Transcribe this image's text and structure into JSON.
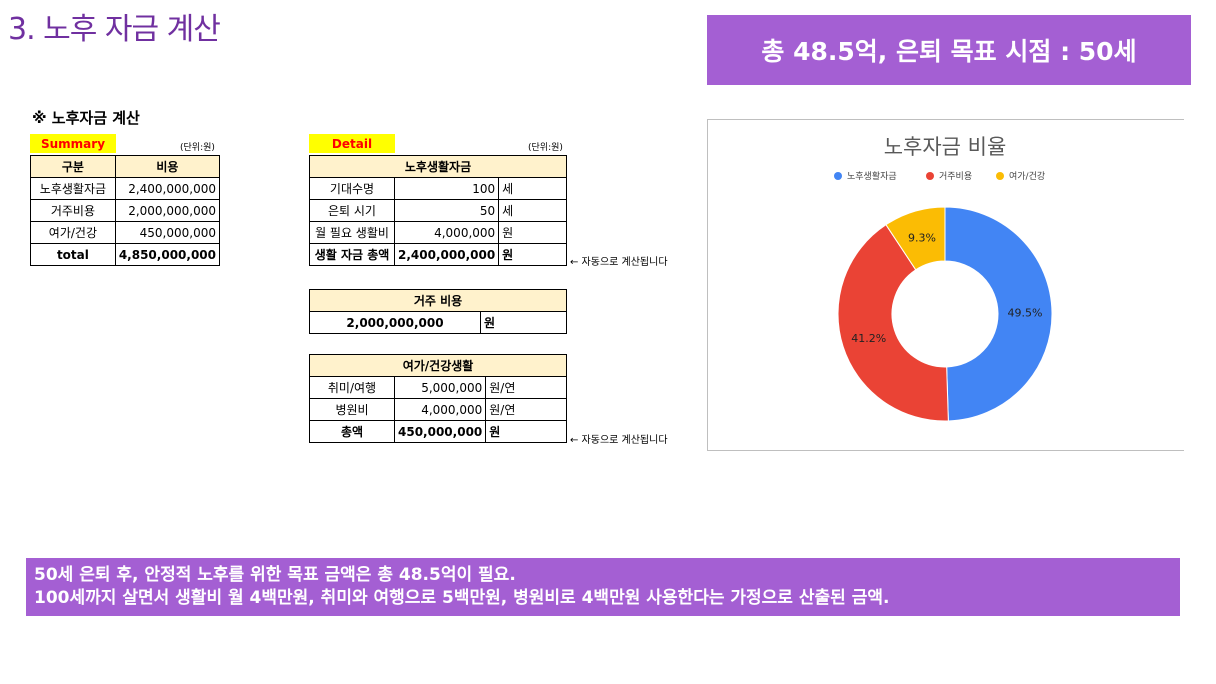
{
  "page": {
    "title": "3. 노후 자금 계산",
    "headline": "총 48.5억, 은퇴 목표 시점 : 50세",
    "section_heading": "※ 노후자금 계산"
  },
  "summary": {
    "tag": "Summary",
    "unit": "(단위:원)",
    "headers": [
      "구분",
      "비용"
    ],
    "rows": [
      {
        "label": "노후생활자금",
        "value": "2,400,000,000"
      },
      {
        "label": "거주비용",
        "value": "2,000,000,000"
      },
      {
        "label": "여가/건강",
        "value": "450,000,000"
      },
      {
        "label": "total",
        "value": "4,850,000,000"
      }
    ]
  },
  "detail": {
    "tag": "Detail",
    "unit": "(단위:원)",
    "living": {
      "header": "노후생활자금",
      "rows": [
        {
          "label": "기대수명",
          "value": "100",
          "unit": "세"
        },
        {
          "label": "은퇴 시기",
          "value": "50",
          "unit": "세"
        },
        {
          "label": "월 필요 생활비",
          "value": "4,000,000",
          "unit": "원"
        },
        {
          "label": "생활 자금 총액",
          "value": "2,400,000,000",
          "unit": "원"
        }
      ],
      "note": "← 자동으로 계산됩니다"
    },
    "housing": {
      "header": "거주 비용",
      "value": "2,000,000,000",
      "unit": "원"
    },
    "leisure": {
      "header": "여가/건강생활",
      "rows": [
        {
          "label": "취미/여행",
          "value": "5,000,000",
          "unit": "원/연"
        },
        {
          "label": "병원비",
          "value": "4,000,000",
          "unit": "원/연"
        },
        {
          "label": "총액",
          "value": "450,000,000",
          "unit": "원"
        }
      ],
      "note": "← 자동으로 계산됩니다"
    }
  },
  "chart_data": {
    "type": "pie",
    "title": "노후자금 비율",
    "donut": true,
    "legend_position": "top",
    "categories": [
      "노후생활자금",
      "거주비용",
      "여가/건강"
    ],
    "values": [
      49.5,
      41.2,
      9.3
    ],
    "labels": [
      "49.5%",
      "41.2%",
      "9.3%"
    ],
    "colors": [
      "#4285f4",
      "#ea4335",
      "#fbbc04"
    ]
  },
  "bottom": {
    "line1": "50세 은퇴 후, 안정적 노후를 위한 목표 금액은 총 48.5억이 필요.",
    "line2": "100세까지 살면서 생활비 월 4백만원, 취미와 여행으로 5백만원, 병원비로 4백만원 사용한다는 가정으로 산출된 금액."
  }
}
